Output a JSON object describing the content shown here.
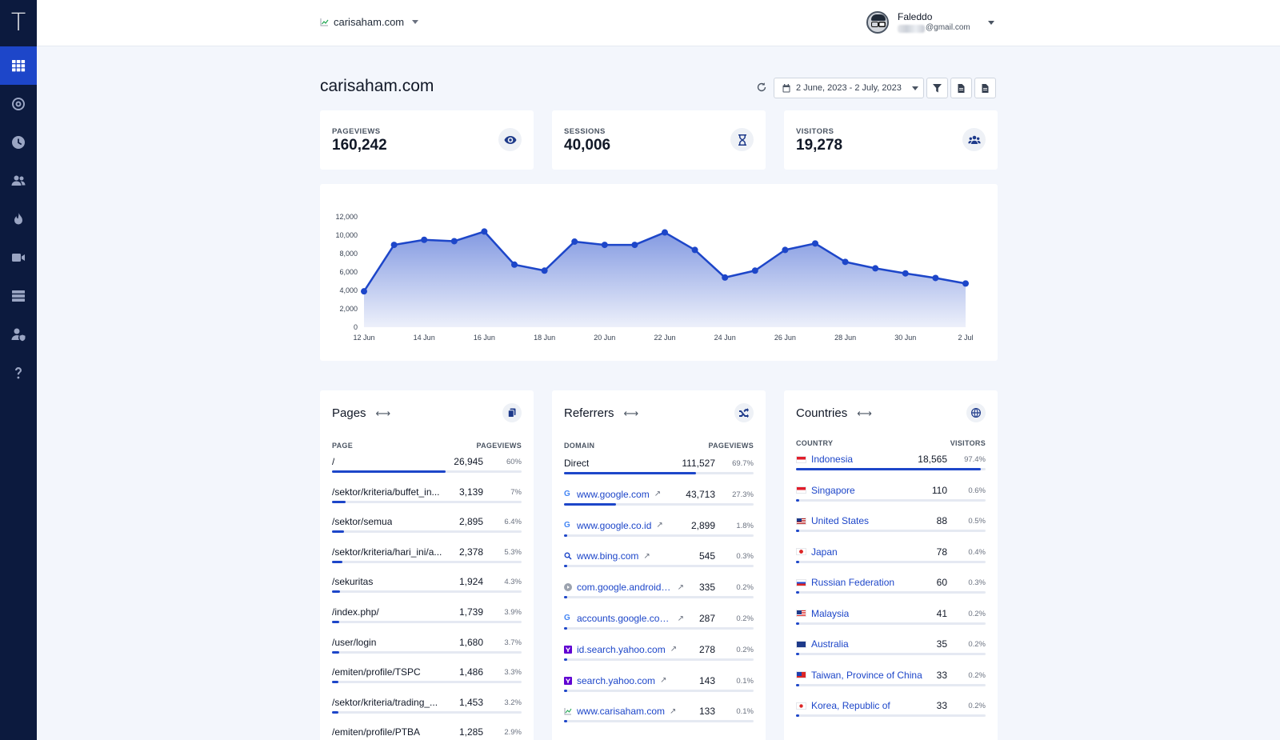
{
  "app": {
    "logo": "T"
  },
  "nav": {
    "items": [
      {
        "name": "dashboard-icon",
        "active": true
      },
      {
        "name": "realtime-icon",
        "active": false
      },
      {
        "name": "history-icon",
        "active": false
      },
      {
        "name": "users-icon",
        "active": false
      },
      {
        "name": "heatmap-icon",
        "active": false
      },
      {
        "name": "recordings-icon",
        "active": false
      },
      {
        "name": "sites-icon",
        "active": false
      },
      {
        "name": "account-icon",
        "active": false
      },
      {
        "name": "help-icon",
        "active": false
      }
    ]
  },
  "header": {
    "site": "carisaham.com",
    "user_name": "Faleddo",
    "user_email_suffix": "@gmail.com"
  },
  "page": {
    "title": "carisaham.com",
    "date_range": "2 June, 2023 - 2 July, 2023"
  },
  "stats": [
    {
      "label": "PAGEVIEWS",
      "value": "160,242",
      "icon": "eye-icon"
    },
    {
      "label": "SESSIONS",
      "value": "40,006",
      "icon": "hourglass-icon"
    },
    {
      "label": "VISITORS",
      "value": "19,278",
      "icon": "users-group-icon"
    }
  ],
  "chart_data": {
    "type": "area",
    "title": "",
    "xlabel": "",
    "ylabel": "",
    "ylim": [
      0,
      12000
    ],
    "yticks": [
      "0",
      "2,000",
      "4,000",
      "6,000",
      "8,000",
      "10,000",
      "12,000"
    ],
    "xticks": [
      "12 Jun",
      "14 Jun",
      "16 Jun",
      "18 Jun",
      "20 Jun",
      "22 Jun",
      "24 Jun",
      "26 Jun",
      "28 Jun",
      "30 Jun",
      "2 Jul"
    ],
    "x": [
      "2023-06-12",
      "2023-06-13",
      "2023-06-14",
      "2023-06-15",
      "2023-06-16",
      "2023-06-17",
      "2023-06-18",
      "2023-06-19",
      "2023-06-20",
      "2023-06-21",
      "2023-06-22",
      "2023-06-23",
      "2023-06-24",
      "2023-06-25",
      "2023-06-26",
      "2023-06-27",
      "2023-06-28",
      "2023-06-29",
      "2023-06-30",
      "2023-07-01",
      "2023-07-02"
    ],
    "series": [
      {
        "values": [
          3900,
          8950,
          9500,
          9350,
          10400,
          6800,
          6150,
          9300,
          8950,
          8950,
          10300,
          8400,
          5400,
          6150,
          8400,
          9100,
          7100,
          6400,
          5850,
          5350,
          4750
        ]
      }
    ],
    "grid": false,
    "color": "#1d46c9"
  },
  "pages": {
    "title": "Pages",
    "col_left": "PAGE",
    "col_right": "PAGEVIEWS",
    "icon": "copy-icon",
    "rows": [
      {
        "name": "/",
        "value": "26,945",
        "pct": "60%",
        "frac": 0.6
      },
      {
        "name": "/sektor/kriteria/buffet_in...",
        "value": "3,139",
        "pct": "7%",
        "frac": 0.07
      },
      {
        "name": "/sektor/semua",
        "value": "2,895",
        "pct": "6.4%",
        "frac": 0.064
      },
      {
        "name": "/sektor/kriteria/hari_ini/a...",
        "value": "2,378",
        "pct": "5.3%",
        "frac": 0.053
      },
      {
        "name": "/sekuritas",
        "value": "1,924",
        "pct": "4.3%",
        "frac": 0.043
      },
      {
        "name": "/index.php/",
        "value": "1,739",
        "pct": "3.9%",
        "frac": 0.039
      },
      {
        "name": "/user/login",
        "value": "1,680",
        "pct": "3.7%",
        "frac": 0.037
      },
      {
        "name": "/emiten/profile/TSPC",
        "value": "1,486",
        "pct": "3.3%",
        "frac": 0.033
      },
      {
        "name": "/sektor/kriteria/trading_...",
        "value": "1,453",
        "pct": "3.2%",
        "frac": 0.032
      },
      {
        "name": "/emiten/profile/PTBA",
        "value": "1,285",
        "pct": "2.9%",
        "frac": 0.029
      }
    ]
  },
  "referrers": {
    "title": "Referrers",
    "col_left": "DOMAIN",
    "col_right": "PAGEVIEWS",
    "icon": "shuffle-icon",
    "rows": [
      {
        "name": "Direct",
        "value": "111,527",
        "pct": "69.7%",
        "frac": 0.697,
        "favicon": "none",
        "link": false
      },
      {
        "name": "www.google.com",
        "value": "43,713",
        "pct": "27.3%",
        "frac": 0.273,
        "favicon": "google",
        "link": true
      },
      {
        "name": "www.google.co.id",
        "value": "2,899",
        "pct": "1.8%",
        "frac": 0.018,
        "favicon": "google",
        "link": true
      },
      {
        "name": "www.bing.com",
        "value": "545",
        "pct": "0.3%",
        "frac": 0.003,
        "favicon": "search",
        "link": true
      },
      {
        "name": "com.google.android.g...",
        "value": "335",
        "pct": "0.2%",
        "frac": 0.002,
        "favicon": "play",
        "link": true
      },
      {
        "name": "accounts.google.com ...",
        "value": "287",
        "pct": "0.2%",
        "frac": 0.002,
        "favicon": "google",
        "link": true
      },
      {
        "name": "id.search.yahoo.com",
        "value": "278",
        "pct": "0.2%",
        "frac": 0.002,
        "favicon": "yahoo",
        "link": true
      },
      {
        "name": "search.yahoo.com",
        "value": "143",
        "pct": "0.1%",
        "frac": 0.001,
        "favicon": "yahoo",
        "link": true
      },
      {
        "name": "www.carisaham.com",
        "value": "133",
        "pct": "0.1%",
        "frac": 0.001,
        "favicon": "chart",
        "link": true
      }
    ]
  },
  "countries": {
    "title": "Countries",
    "col_left": "COUNTRY",
    "col_right": "VISITORS",
    "icon": "globe-icon",
    "rows": [
      {
        "name": "Indonesia",
        "value": "18,565",
        "pct": "97.4%",
        "frac": 0.974,
        "flag": "id"
      },
      {
        "name": "Singapore",
        "value": "110",
        "pct": "0.6%",
        "frac": 0.006,
        "flag": "sg"
      },
      {
        "name": "United States",
        "value": "88",
        "pct": "0.5%",
        "frac": 0.005,
        "flag": "us"
      },
      {
        "name": "Japan",
        "value": "78",
        "pct": "0.4%",
        "frac": 0.004,
        "flag": "jp"
      },
      {
        "name": "Russian Federation",
        "value": "60",
        "pct": "0.3%",
        "frac": 0.003,
        "flag": "ru"
      },
      {
        "name": "Malaysia",
        "value": "41",
        "pct": "0.2%",
        "frac": 0.002,
        "flag": "my"
      },
      {
        "name": "Australia",
        "value": "35",
        "pct": "0.2%",
        "frac": 0.002,
        "flag": "au"
      },
      {
        "name": "Taiwan, Province of China",
        "value": "33",
        "pct": "0.2%",
        "frac": 0.002,
        "flag": "tw"
      },
      {
        "name": "Korea, Republic of",
        "value": "33",
        "pct": "0.2%",
        "frac": 0.002,
        "flag": "kr"
      }
    ]
  }
}
